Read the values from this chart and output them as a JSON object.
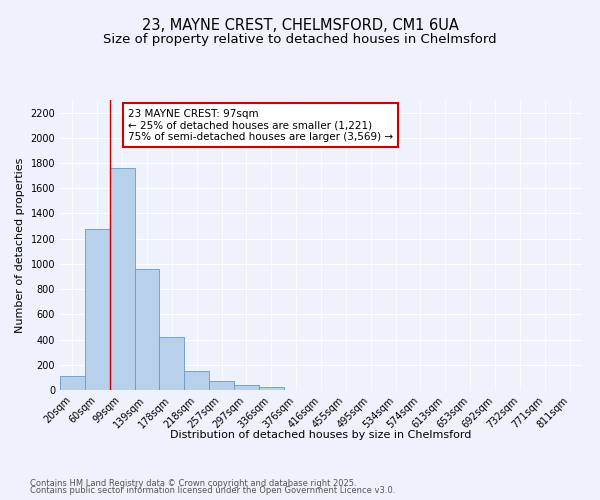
{
  "title_line1": "23, MAYNE CREST, CHELMSFORD, CM1 6UA",
  "title_line2": "Size of property relative to detached houses in Chelmsford",
  "xlabel": "Distribution of detached houses by size in Chelmsford",
  "ylabel": "Number of detached properties",
  "bar_color": "#b8d0ea",
  "bar_edge_color": "#6699cc",
  "vline_color": "#cc0000",
  "vline_x": 1.5,
  "categories": [
    "20sqm",
    "60sqm",
    "99sqm",
    "139sqm",
    "178sqm",
    "218sqm",
    "257sqm",
    "297sqm",
    "336sqm",
    "376sqm",
    "416sqm",
    "455sqm",
    "495sqm",
    "534sqm",
    "574sqm",
    "613sqm",
    "653sqm",
    "692sqm",
    "732sqm",
    "771sqm",
    "811sqm"
  ],
  "values": [
    110,
    1280,
    1760,
    960,
    420,
    150,
    75,
    40,
    20,
    0,
    0,
    0,
    0,
    0,
    0,
    0,
    0,
    0,
    0,
    0,
    0
  ],
  "ylim": [
    0,
    2300
  ],
  "yticks": [
    0,
    200,
    400,
    600,
    800,
    1000,
    1200,
    1400,
    1600,
    1800,
    2000,
    2200
  ],
  "annotation_title": "23 MAYNE CREST: 97sqm",
  "annotation_line1": "← 25% of detached houses are smaller (1,221)",
  "annotation_line2": "75% of semi-detached houses are larger (3,569) →",
  "annotation_box_color": "#ffffff",
  "annotation_border_color": "#cc0000",
  "background_color": "#eef2fc",
  "grid_color": "#ffffff",
  "footer_line1": "Contains HM Land Registry data © Crown copyright and database right 2025.",
  "footer_line2": "Contains public sector information licensed under the Open Government Licence v3.0.",
  "title_fontsize": 10.5,
  "subtitle_fontsize": 9.5,
  "label_fontsize": 8,
  "tick_fontsize": 7,
  "annotation_fontsize": 7.5,
  "footer_fontsize": 6
}
